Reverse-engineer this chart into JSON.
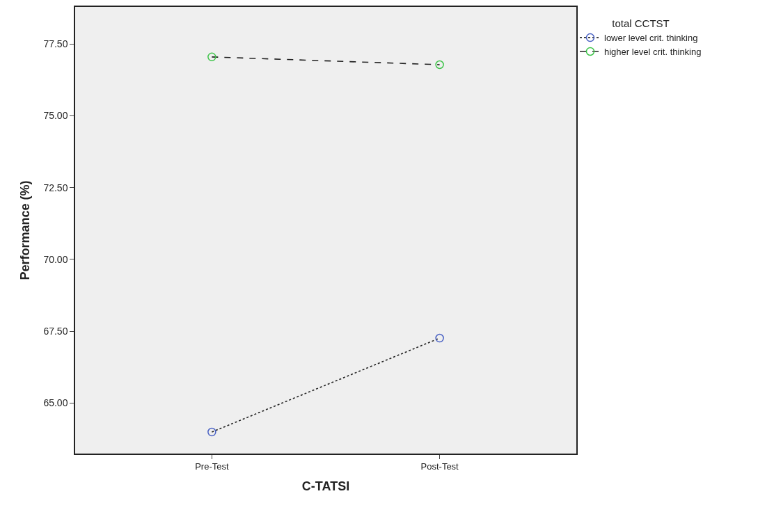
{
  "chart_data": {
    "type": "line",
    "xlabel": "C-TATSI",
    "ylabel": "Performance (%)",
    "legend_title": "total CCTST",
    "categories": [
      "Pre-Test",
      "Post-Test"
    ],
    "series": [
      {
        "name": "lower level crit. thinking",
        "color": "#4a62c4",
        "values": [
          63.99,
          67.26
        ],
        "line_style": "dotted"
      },
      {
        "name": "higher level crit. thinking",
        "color": "#3fc44a",
        "values": [
          77.05,
          76.78
        ],
        "line_style": "dashed"
      }
    ],
    "ylim": [
      63.24,
      78.79
    ],
    "yticks": [
      {
        "value": 65,
        "label": "65.00"
      },
      {
        "value": 67.5,
        "label": "67.50"
      },
      {
        "value": 70,
        "label": "70.00"
      },
      {
        "value": 72.5,
        "label": "72.50"
      },
      {
        "value": 75,
        "label": "75.00"
      },
      {
        "value": 77.5,
        "label": "77.50"
      }
    ],
    "marker": "circle",
    "legend": "top right",
    "grid": false
  }
}
